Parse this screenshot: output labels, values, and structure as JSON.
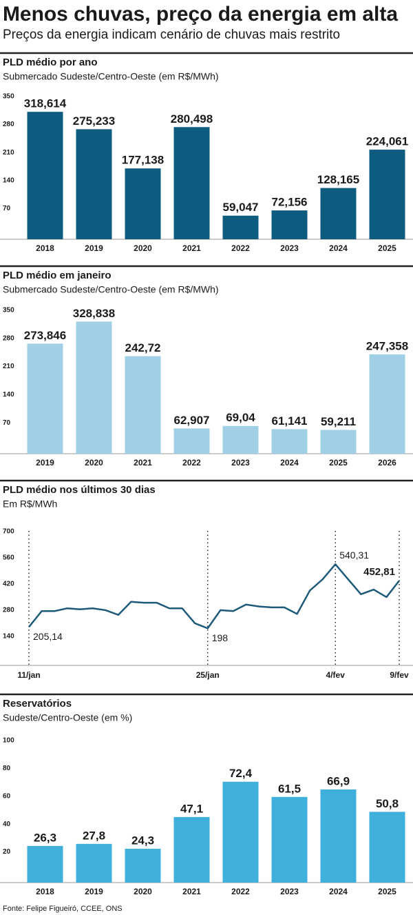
{
  "title": "Menos chuvas, preço da energia em alta",
  "subtitle": "Preços da energia indicam cenário de chuvas mais restrito",
  "source": "Fonte: Felipe Figueiró, CCEE, ONS",
  "chart_data": [
    {
      "type": "bar",
      "title": "PLD médio por ano",
      "subtitle": "Submercado Sudeste/Centro-Oeste (em R$/MWh)",
      "categories": [
        "2018",
        "2019",
        "2020",
        "2021",
        "2022",
        "2023",
        "2024",
        "2025"
      ],
      "values": [
        318.614,
        275.233,
        177.138,
        280.498,
        59.047,
        72.156,
        128.165,
        224.061
      ],
      "value_labels": [
        "318,614",
        "275,233",
        "177,138",
        "280,498",
        "59,047",
        "72,156",
        "128,165",
        "224,061"
      ],
      "color": "#0d5c80",
      "ylim": [
        0,
        350
      ],
      "yticks": [
        70,
        140,
        210,
        280,
        350
      ]
    },
    {
      "type": "bar",
      "title": "PLD médio em janeiro",
      "subtitle": "Submercado Sudeste/Centro-Oeste (em R$/MWh)",
      "categories": [
        "2019",
        "2020",
        "2021",
        "2022",
        "2023",
        "2024",
        "2025",
        "2026"
      ],
      "values": [
        273.846,
        328.838,
        242.72,
        62.907,
        69.04,
        61.141,
        59.211,
        247.358
      ],
      "value_labels": [
        "273,846",
        "328,838",
        "242,72",
        "62,907",
        "69,04",
        "61,141",
        "59,211",
        "247,358"
      ],
      "color": "#a1d0e6",
      "ylim": [
        0,
        350
      ],
      "yticks": [
        70,
        140,
        210,
        280,
        350
      ]
    },
    {
      "type": "line",
      "title": "PLD médio nos últimos 30 dias",
      "subtitle": "Em R$/MWh",
      "categories": [
        "11/jan",
        null,
        null,
        null,
        null,
        null,
        null,
        null,
        null,
        null,
        null,
        null,
        null,
        null,
        "25/jan",
        null,
        null,
        null,
        null,
        null,
        null,
        null,
        null,
        null,
        "4/fev",
        null,
        null,
        null,
        null,
        "9/fev"
      ],
      "values": [
        205.14,
        290,
        290,
        305,
        300,
        305,
        295,
        270,
        340,
        335,
        335,
        305,
        305,
        225,
        198,
        295,
        290,
        325,
        315,
        310,
        310,
        275,
        400,
        460,
        540.31,
        460,
        380,
        405,
        365,
        452.81
      ],
      "value_labels": [
        "205,14",
        null,
        null,
        null,
        null,
        null,
        null,
        null,
        null,
        null,
        null,
        null,
        null,
        null,
        "198",
        null,
        null,
        null,
        null,
        null,
        null,
        null,
        null,
        null,
        "540,31",
        null,
        null,
        null,
        null,
        "452,81"
      ],
      "color": "#1d5a7a",
      "ylim": [
        0,
        700
      ],
      "yticks": [
        140,
        280,
        420,
        560,
        700
      ]
    },
    {
      "type": "bar",
      "title": "Reservatórios",
      "subtitle": "Sudeste/Centro-Oeste (em %)",
      "categories": [
        "2018",
        "2019",
        "2020",
        "2021",
        "2022",
        "2023",
        "2024",
        "2025"
      ],
      "values": [
        26.3,
        27.8,
        24.3,
        47.1,
        72.4,
        61.5,
        66.9,
        50.8
      ],
      "value_labels": [
        "26,3",
        "27,8",
        "24,3",
        "47,1",
        "72,4",
        "61,5",
        "66,9",
        "50,8"
      ],
      "color": "#3fb0dc",
      "ylim": [
        0,
        100
      ],
      "yticks": [
        20,
        40,
        60,
        80,
        100
      ]
    }
  ]
}
